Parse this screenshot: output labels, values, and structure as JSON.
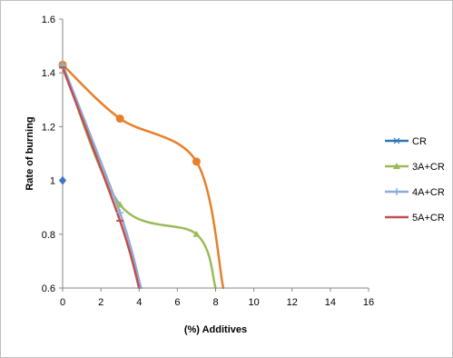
{
  "chart_data": {
    "type": "line",
    "title": "",
    "xlabel": "(%) Additives",
    "ylabel": "Rate of burning",
    "xlim": [
      0,
      16
    ],
    "ylim": [
      0.6,
      1.6
    ],
    "x_ticks": [
      0,
      2,
      4,
      6,
      8,
      10,
      12,
      14,
      16
    ],
    "y_ticks": [
      0.6,
      0.8,
      1.0,
      1.2,
      1.4,
      1.6
    ],
    "x_tick_labels": [
      "0",
      "2",
      "4",
      "6",
      "8",
      "10",
      "12",
      "14",
      "16"
    ],
    "y_tick_labels": [
      "0.6",
      "0.8",
      "1",
      "1.2",
      "1.4",
      "1.6"
    ],
    "grid": false,
    "legend_position": "right",
    "legend": [
      {
        "label": "CR",
        "color": "#2e75b6",
        "marker": "asterisk"
      },
      {
        "label": "3A+CR",
        "color": "#9bbb59",
        "marker": "triangle"
      },
      {
        "label": "4A+CR",
        "color": "#8eaadb",
        "marker": "plus"
      },
      {
        "label": "5A+CR",
        "color": "#c0504d",
        "marker": "dash"
      }
    ],
    "series": [
      {
        "color": "#e87f2a",
        "marker": "circle",
        "smooth": true,
        "points": [
          [
            0,
            1.43
          ],
          [
            3,
            1.23
          ],
          [
            7,
            1.07
          ],
          [
            8.4,
            0.6
          ]
        ]
      },
      {
        "color": "#9bbb59",
        "marker": "triangle",
        "smooth": true,
        "points": [
          [
            0,
            1.43
          ],
          [
            3,
            0.91
          ],
          [
            7,
            0.8
          ],
          [
            8,
            0.6
          ]
        ]
      },
      {
        "color": "#8eaadb",
        "marker": "plus",
        "smooth": true,
        "points": [
          [
            0,
            1.43
          ],
          [
            3,
            0.88
          ],
          [
            4.1,
            0.6
          ]
        ]
      },
      {
        "color": "#c0504d",
        "marker": "dash",
        "smooth": true,
        "points": [
          [
            0,
            1.42
          ],
          [
            3,
            0.85
          ],
          [
            4.0,
            0.6
          ]
        ]
      },
      {
        "color": "#4472c4",
        "marker": "diamond",
        "smooth": false,
        "points": [
          [
            0,
            1.0
          ]
        ]
      }
    ]
  }
}
